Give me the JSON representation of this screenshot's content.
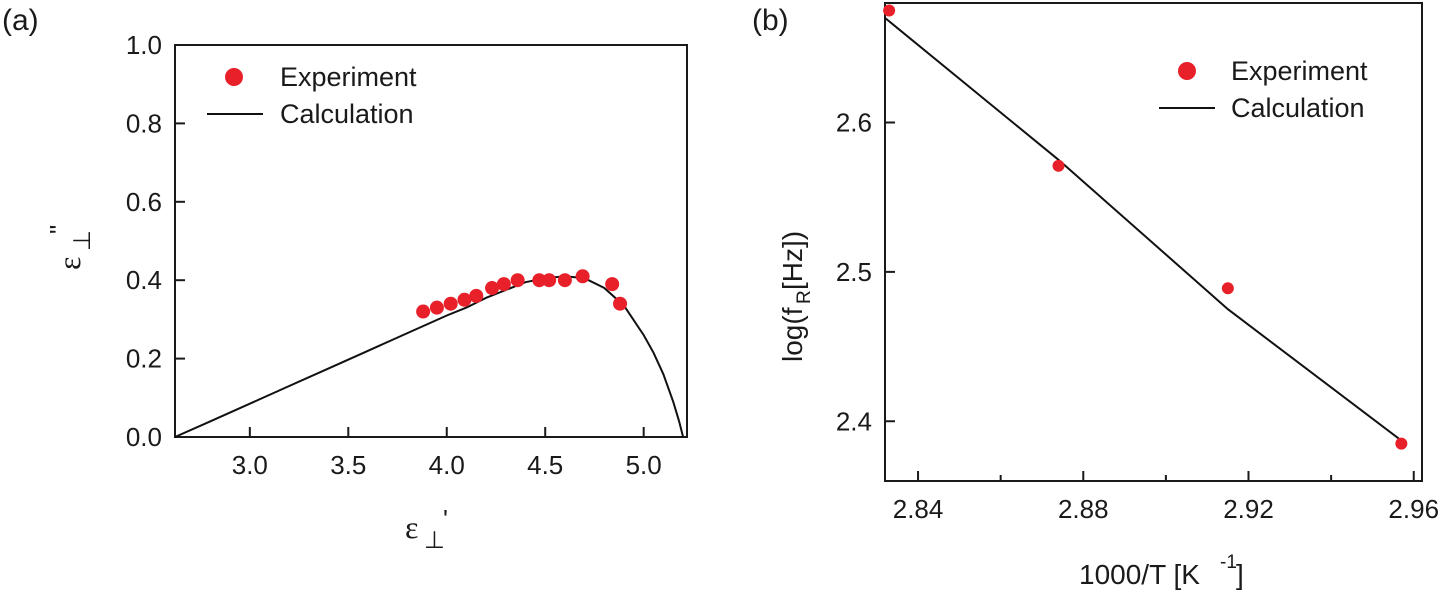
{
  "chart_data": [
    {
      "type": "scatter",
      "panel_label": "(a)",
      "xlabel": {
        "base": "ε",
        "sub": "⊥",
        "sup": "'"
      },
      "ylabel": {
        "base": "ε",
        "sub": "⊥",
        "sup": "\""
      },
      "xlim": [
        2.62,
        5.22
      ],
      "ylim": [
        0,
        1.0
      ],
      "xticks": [
        3.0,
        3.5,
        4.0,
        4.5,
        5.0
      ],
      "xtick_labels": [
        "3.0",
        "3.5",
        "4.0",
        "4.5",
        "5.0"
      ],
      "yticks": [
        0.0,
        0.2,
        0.4,
        0.6,
        0.8,
        1.0
      ],
      "ytick_labels": [
        "0.0",
        "0.2",
        "0.4",
        "0.6",
        "0.8",
        "1.0"
      ],
      "legend": {
        "position": "top-left",
        "entries": [
          "Experiment",
          "Calculation"
        ]
      },
      "series": [
        {
          "name": "Experiment",
          "kind": "points",
          "color": "#e8202a",
          "x": [
            3.88,
            3.95,
            4.02,
            4.09,
            4.15,
            4.23,
            4.29,
            4.36,
            4.47,
            4.52,
            4.6,
            4.69,
            4.84,
            4.88
          ],
          "y": [
            0.32,
            0.33,
            0.34,
            0.35,
            0.36,
            0.38,
            0.39,
            0.4,
            0.4,
            0.4,
            0.4,
            0.41,
            0.39,
            0.34
          ]
        },
        {
          "name": "Calculation",
          "kind": "line",
          "color": "#111111",
          "x": [
            2.62,
            2.8,
            3.0,
            3.2,
            3.4,
            3.6,
            3.8,
            4.0,
            4.1,
            4.2,
            4.3,
            4.4,
            4.5,
            4.6,
            4.7,
            4.8,
            4.9,
            5.0,
            5.05,
            5.1,
            5.15,
            5.18,
            5.2
          ],
          "y": [
            0.0,
            0.04,
            0.085,
            0.13,
            0.175,
            0.22,
            0.265,
            0.31,
            0.33,
            0.355,
            0.375,
            0.395,
            0.405,
            0.41,
            0.405,
            0.38,
            0.335,
            0.26,
            0.215,
            0.16,
            0.09,
            0.04,
            0.0
          ]
        }
      ]
    },
    {
      "type": "scatter",
      "panel_label": "(b)",
      "xlabel": {
        "base": "1000/T [K",
        "sup": "-1",
        "tail": "]"
      },
      "ylabel": {
        "base": "log(f",
        "sub": "R",
        "tail": " [Hz])"
      },
      "xlim": [
        2.832,
        2.962
      ],
      "ylim": [
        2.36,
        2.68
      ],
      "xticks": [
        2.84,
        2.88,
        2.92,
        2.96
      ],
      "xtick_labels": [
        "2.84",
        "2.88",
        "2.92",
        "2.96"
      ],
      "xticks_minor": [
        2.86,
        2.9,
        2.94
      ],
      "yticks": [
        2.4,
        2.5,
        2.6
      ],
      "ytick_labels": [
        "2.4",
        "2.5",
        "2.6"
      ],
      "legend": {
        "position": "top-right",
        "entries": [
          "Experiment",
          "Calculation"
        ]
      },
      "series": [
        {
          "name": "Experiment",
          "kind": "points",
          "color": "#e8202a",
          "x": [
            2.833,
            2.874,
            2.915,
            2.957
          ],
          "y": [
            2.675,
            2.571,
            2.489,
            2.385
          ]
        },
        {
          "name": "Calculation",
          "kind": "line",
          "color": "#111111",
          "x": [
            2.832,
            2.874,
            2.915,
            2.958
          ],
          "y": [
            2.67,
            2.575,
            2.475,
            2.385
          ]
        }
      ]
    }
  ]
}
